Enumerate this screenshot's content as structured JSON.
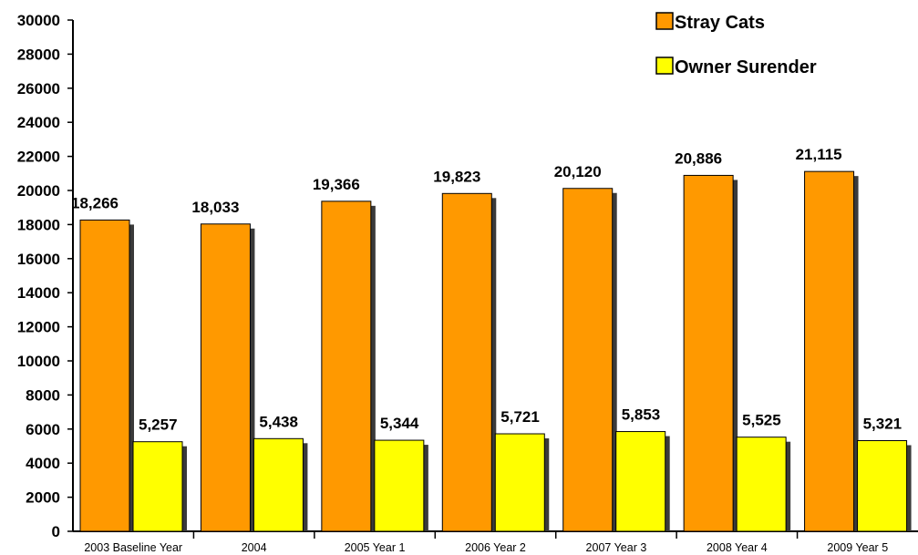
{
  "chart_data": {
    "type": "bar",
    "categories": [
      "2003 Baseline Year",
      "2004",
      "2005 Year 1",
      "2006 Year 2",
      "2007 Year 3",
      "2008 Year 4",
      "2009 Year 5"
    ],
    "series": [
      {
        "name": "Stray Cats",
        "color": "#ff9900",
        "values": [
          18266,
          18033,
          19366,
          19823,
          20120,
          20886,
          21115
        ],
        "labels": [
          "18,266",
          "18,033",
          "19,366",
          "19,823",
          "20,120",
          "20,886",
          "21,115"
        ]
      },
      {
        "name": "Owner Surender",
        "color": "#ffff00",
        "values": [
          5257,
          5438,
          5344,
          5721,
          5853,
          5525,
          5321
        ],
        "labels": [
          "5,257",
          "5,438",
          "5,344",
          "5,721",
          "5,853",
          "5,525",
          "5,321"
        ]
      }
    ],
    "yticks": [
      "0",
      "2000",
      "4000",
      "6000",
      "8000",
      "10000",
      "12000",
      "14000",
      "16000",
      "18000",
      "20000",
      "22000",
      "24000",
      "26000",
      "28000",
      "30000"
    ],
    "ylim": [
      0,
      30000
    ],
    "grid": false,
    "legend_position": "top-right"
  }
}
